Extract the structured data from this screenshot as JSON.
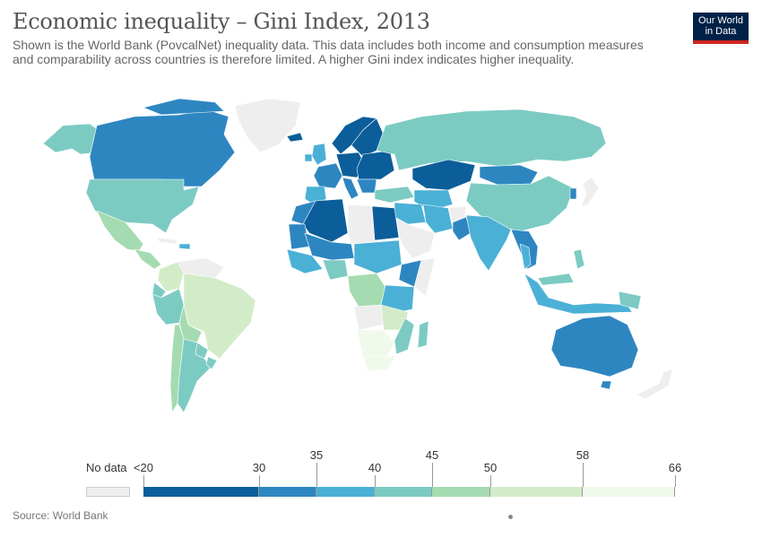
{
  "title": "Economic inequality – Gini Index, 2013",
  "subtitle": "Shown is the World Bank (PovcalNet) inequality data. This data includes both income and consumption measures and comparability across countries is therefore limited. A higher Gini index indicates higher inequality.",
  "logo": {
    "line1": "Our World",
    "line2": "in Data"
  },
  "legend": {
    "no_data_label": "No data",
    "no_data_color": "#eeeeee",
    "bins": [
      {
        "from": "<20",
        "to": "30",
        "color": "#0b5e9a"
      },
      {
        "from": "30",
        "to": "35",
        "color": "#2e86c1"
      },
      {
        "from": "35",
        "to": "40",
        "color": "#4bb0d6"
      },
      {
        "from": "40",
        "to": "45",
        "color": "#7ccbc3"
      },
      {
        "from": "45",
        "to": "50",
        "color": "#a5dbb0"
      },
      {
        "from": "50",
        "to": "58",
        "color": "#d3ecc8"
      },
      {
        "from": "58",
        "to": "66",
        "color": "#f1f9ea"
      }
    ],
    "ticks": [
      "<20",
      "30",
      "35",
      "40",
      "45",
      "50",
      "58",
      "66"
    ]
  },
  "source": "Source: World Bank"
}
